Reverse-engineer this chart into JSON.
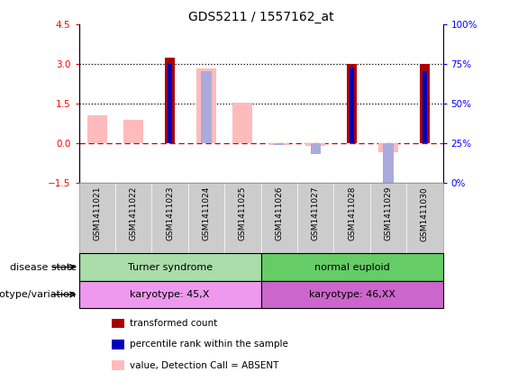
{
  "title": "GDS5211 / 1557162_at",
  "samples": [
    "GSM1411021",
    "GSM1411022",
    "GSM1411023",
    "GSM1411024",
    "GSM1411025",
    "GSM1411026",
    "GSM1411027",
    "GSM1411028",
    "GSM1411029",
    "GSM1411030"
  ],
  "transformed_count": [
    null,
    null,
    3.25,
    null,
    null,
    null,
    null,
    3.0,
    null,
    3.0
  ],
  "percentile_rank": [
    null,
    null,
    3.0,
    null,
    null,
    null,
    null,
    2.88,
    null,
    2.75
  ],
  "value_absent": [
    1.05,
    0.9,
    null,
    2.85,
    1.55,
    -0.05,
    -0.1,
    null,
    -0.35,
    null
  ],
  "rank_absent": [
    null,
    null,
    null,
    2.75,
    null,
    -0.08,
    -0.42,
    null,
    -1.6,
    2.75
  ],
  "ylim_left": [
    -1.5,
    4.5
  ],
  "ylim_right": [
    0,
    100
  ],
  "hlines": [
    0.0,
    1.5,
    3.0
  ],
  "hline_styles": [
    "dashed",
    "dotted",
    "dotted"
  ],
  "hline_colors": [
    "#cc0000",
    "#000000",
    "#000000"
  ],
  "right_ticks": [
    0,
    25,
    50,
    75,
    100
  ],
  "right_tick_labels": [
    "0%",
    "25%",
    "50%",
    "75%",
    "100%"
  ],
  "left_ticks": [
    -1.5,
    0.0,
    1.5,
    3.0,
    4.5
  ],
  "disease_state_groups": [
    {
      "label": "Turner syndrome",
      "start": 0,
      "end": 5,
      "color": "#aaddaa"
    },
    {
      "label": "normal euploid",
      "start": 5,
      "end": 10,
      "color": "#66cc66"
    }
  ],
  "genotype_groups": [
    {
      "label": "karyotype: 45,X",
      "start": 0,
      "end": 5,
      "color": "#ee99ee"
    },
    {
      "label": "karyotype: 46,XX",
      "start": 5,
      "end": 10,
      "color": "#cc66cc"
    }
  ],
  "color_transformed": "#aa0000",
  "color_percentile": "#0000bb",
  "color_value_absent": "#ffbbbb",
  "color_rank_absent": "#aaaadd",
  "bg_color": "#ffffff",
  "xtick_bg_color": "#cccccc",
  "disease_row_label": "disease state",
  "genotype_row_label": "genotype/variation",
  "legend_items": [
    {
      "label": "transformed count",
      "color": "#aa0000"
    },
    {
      "label": "percentile rank within the sample",
      "color": "#0000bb"
    },
    {
      "label": "value, Detection Call = ABSENT",
      "color": "#ffbbbb"
    },
    {
      "label": "rank, Detection Call = ABSENT",
      "color": "#aaaadd"
    }
  ]
}
